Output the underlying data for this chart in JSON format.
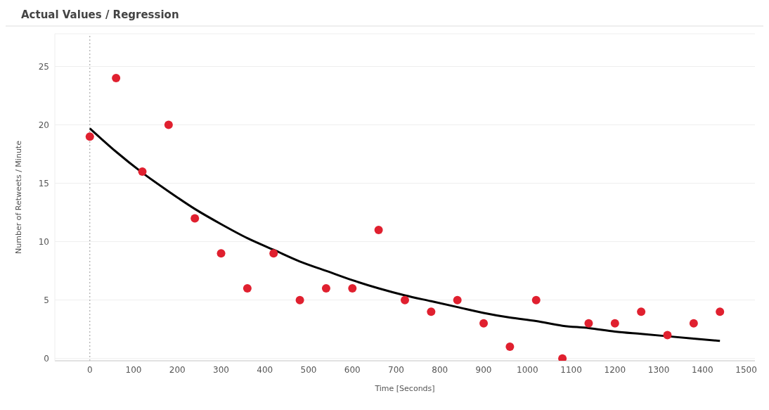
{
  "chart_data": {
    "type": "scatter",
    "title": "Actual Values / Regression",
    "xlabel": "Time [Seconds]",
    "ylabel": "Number of Retweets / Minute",
    "xlim": [
      -80,
      1520
    ],
    "xticks": [
      0,
      100,
      200,
      300,
      400,
      500,
      600,
      700,
      800,
      900,
      1000,
      1100,
      1200,
      1300,
      1400,
      1500
    ],
    "ylim": [
      -0.2,
      27.8
    ],
    "yticks": [
      0,
      5,
      10,
      15,
      20,
      25
    ],
    "grid": "y",
    "marker": "circle",
    "ref_lines": [
      {
        "axis": "x",
        "value": 0,
        "color": "#999999",
        "line_style": "dotted"
      }
    ],
    "series": [
      {
        "color": "#e0202f",
        "x": [
          0,
          60,
          120,
          180,
          240,
          300,
          360,
          420,
          480,
          540,
          600,
          660,
          720,
          780,
          840,
          900,
          960,
          1020,
          1080,
          1140,
          1200,
          1260,
          1320,
          1380,
          1440
        ],
        "values": [
          19,
          24,
          16,
          20,
          12,
          9,
          6,
          9,
          5,
          6,
          6,
          11,
          5,
          4,
          5,
          3,
          1,
          5,
          0,
          3,
          3,
          4,
          2,
          3,
          4
        ]
      },
      {
        "type": "line",
        "color": "#000000",
        "marker": "none",
        "line_style": "solid",
        "x": [
          0,
          60,
          120,
          180,
          240,
          300,
          360,
          420,
          480,
          540,
          600,
          660,
          720,
          780,
          840,
          900,
          960,
          1020,
          1080,
          1140,
          1200,
          1260,
          1320,
          1380,
          1440
        ],
        "values": [
          19.7,
          17.7,
          15.9,
          14.3,
          12.8,
          11.5,
          10.3,
          9.3,
          8.3,
          7.5,
          6.7,
          6.0,
          5.4,
          4.9,
          4.4,
          3.9,
          3.5,
          3.2,
          2.8,
          2.6,
          2.3,
          2.1,
          1.9,
          1.7,
          1.5
        ]
      }
    ]
  }
}
